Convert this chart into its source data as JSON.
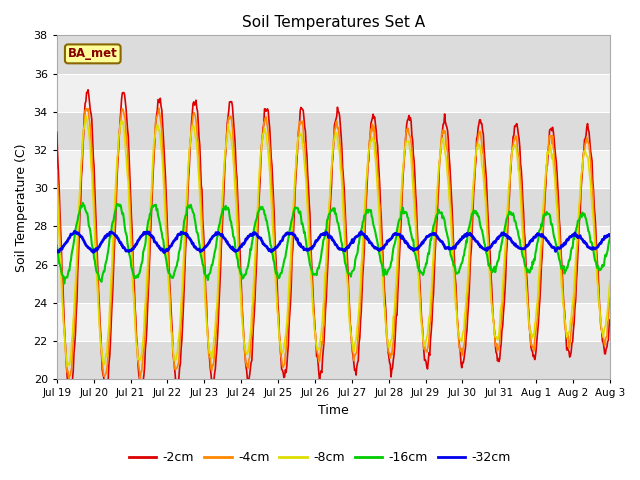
{
  "title": "Soil Temperatures Set A",
  "xlabel": "Time",
  "ylabel": "Soil Temperature (C)",
  "ylim": [
    20,
    38
  ],
  "yticks": [
    20,
    22,
    24,
    26,
    28,
    30,
    32,
    34,
    36,
    38
  ],
  "date_labels": [
    "Jul 19",
    "Jul 20",
    "Jul 21",
    "Jul 22",
    "Jul 23",
    "Jul 24",
    "Jul 25",
    "Jul 26",
    "Jul 27",
    "Jul 28",
    "Jul 29",
    "Jul 30",
    "Jul 31",
    "Aug 1",
    "Aug 2",
    "Aug 3"
  ],
  "series_labels": [
    "-2cm",
    "-4cm",
    "-8cm",
    "-16cm",
    "-32cm"
  ],
  "series_colors": [
    "#dd0000",
    "#ff8800",
    "#dddd00",
    "#00cc00",
    "#0000ee"
  ],
  "series_linewidths": [
    1.2,
    1.2,
    1.2,
    1.5,
    2.0
  ],
  "plot_bg": "#e8e8e8",
  "band_light": "#f0f0f0",
  "band_dark": "#dcdcdc",
  "label_box_text": "BA_met",
  "label_box_facecolor": "#ffff99",
  "label_box_edgecolor": "#886600",
  "label_box_textcolor": "#880000",
  "n_days": 15.5,
  "base_temp": 27.2,
  "amp2": 8.0,
  "amp4": 7.2,
  "amp8": 6.5,
  "amp16": 2.0,
  "amp32": 0.5,
  "decay_factor": 0.03
}
